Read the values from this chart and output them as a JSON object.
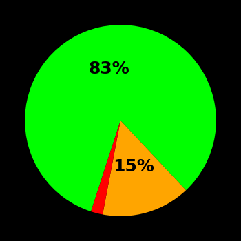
{
  "slices": [
    83,
    15,
    2
  ],
  "colors": [
    "#00ff00",
    "#ffa500",
    "#ff0000"
  ],
  "labels": [
    "83%",
    "15%",
    ""
  ],
  "background_color": "#000000",
  "startangle": -108,
  "label_fontsize": 18,
  "label_fontweight": "bold",
  "label_color": "#000000",
  "label_radii": [
    0.55,
    0.5,
    0
  ]
}
